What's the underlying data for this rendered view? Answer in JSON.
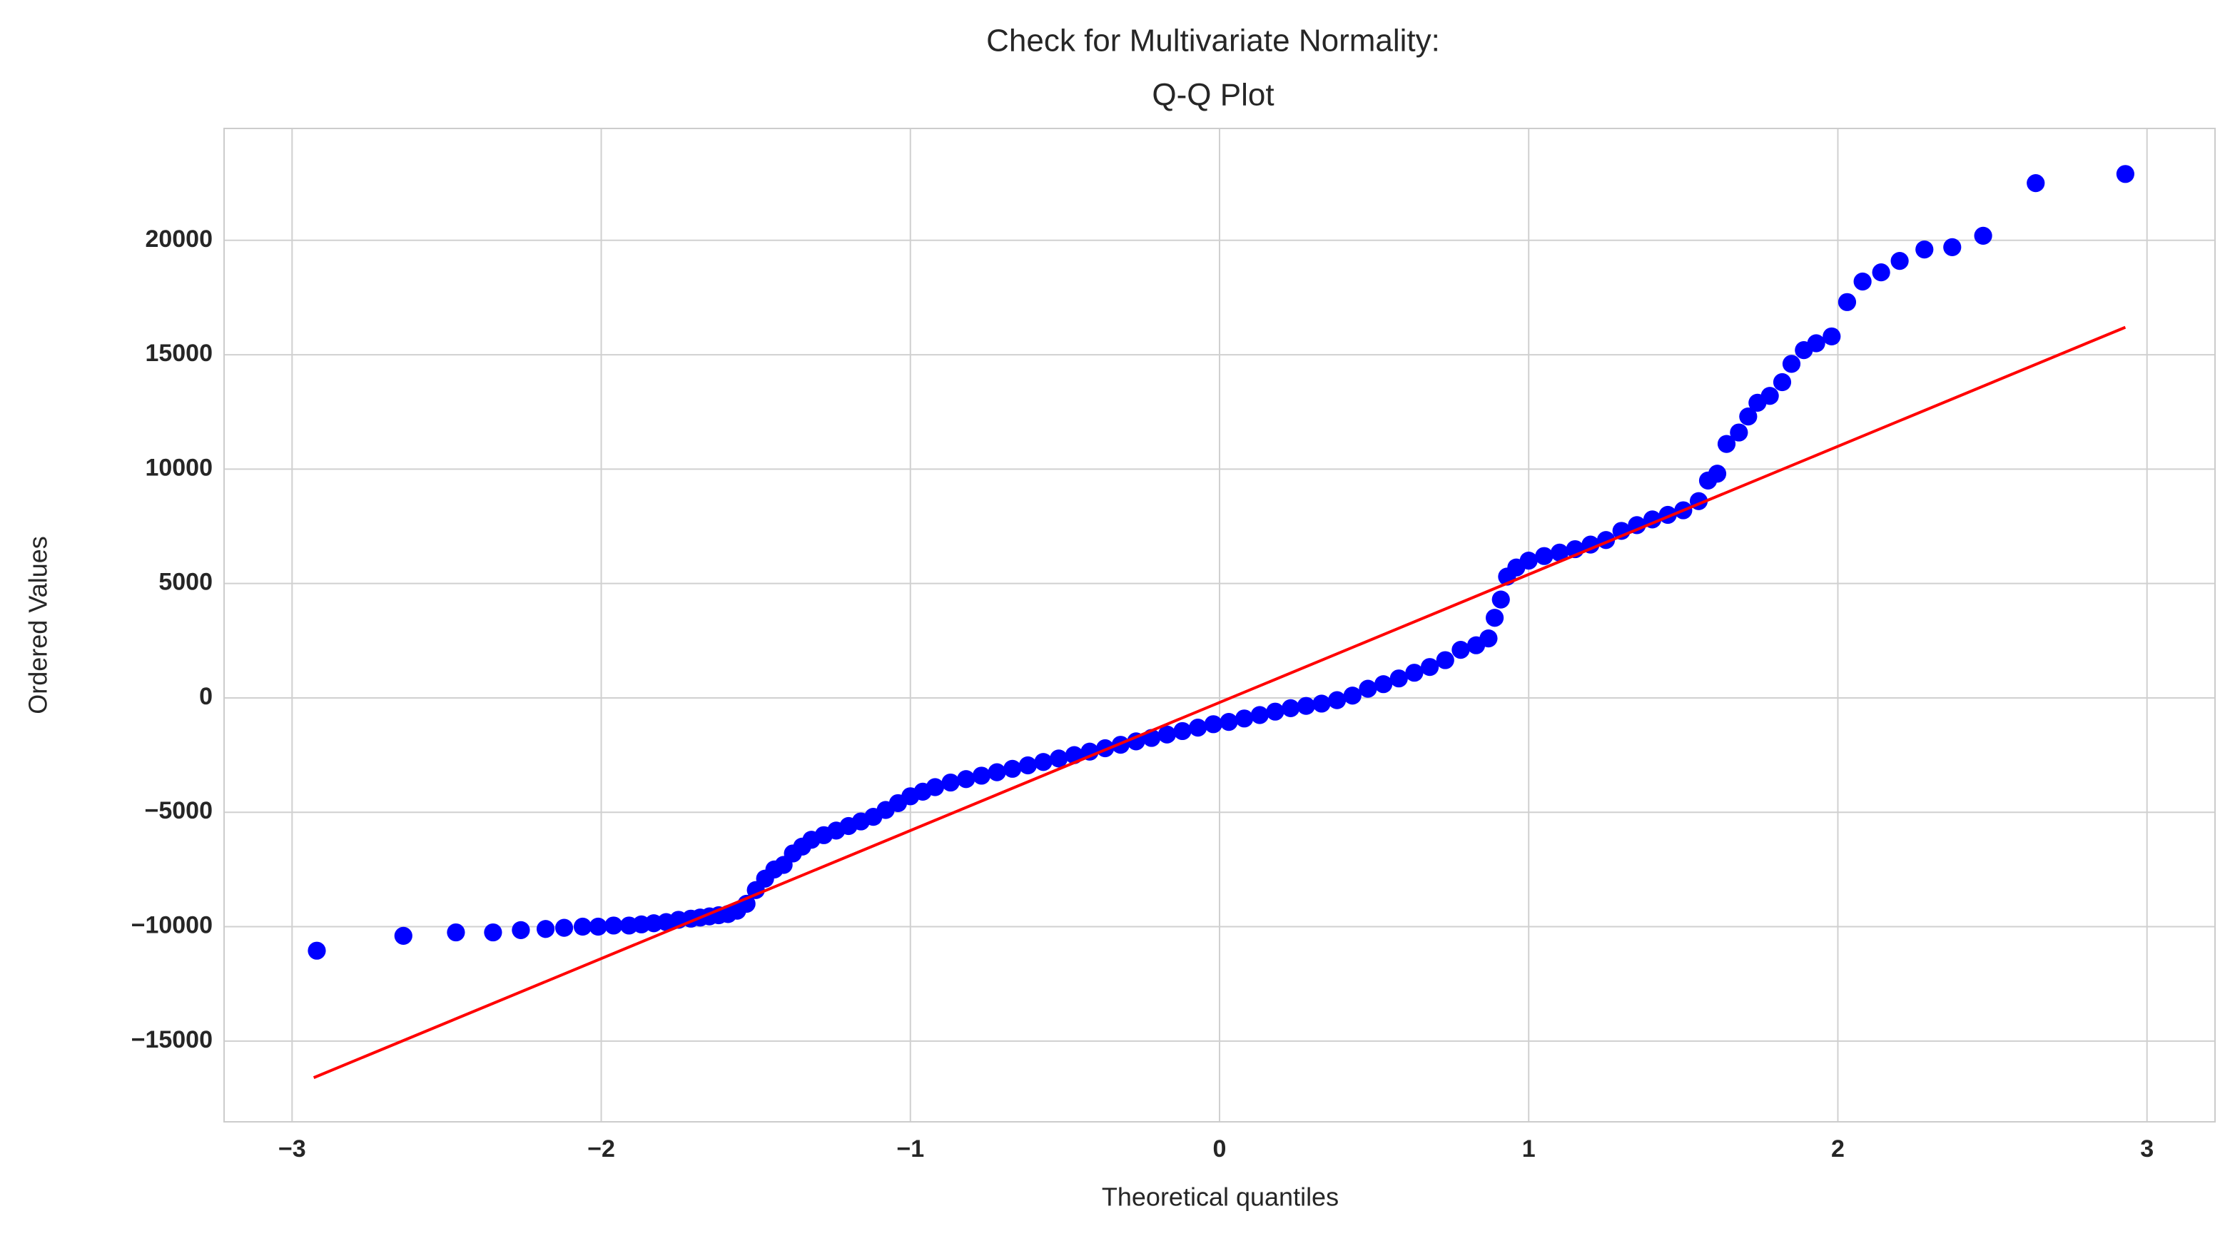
{
  "chart_data": {
    "type": "scatter",
    "title": [
      "Check for Multivariate Normality:",
      "Q-Q Plot"
    ],
    "x_label": "Theoretical quantiles",
    "y_label": "Ordered Values",
    "xlim": [
      -3.22,
      3.22
    ],
    "ylim": [
      -18530,
      24890
    ],
    "xticks": [
      {
        "value": -3,
        "label": "−3"
      },
      {
        "value": -2,
        "label": "−2"
      },
      {
        "value": -1,
        "label": "−1"
      },
      0,
      1,
      2,
      3
    ],
    "yticks": [
      {
        "value": -15000,
        "label": "−15000"
      },
      {
        "value": -10000,
        "label": "−10000"
      },
      {
        "value": -5000,
        "label": "−5000"
      },
      0,
      5000,
      10000,
      15000,
      20000
    ],
    "grid": true,
    "series": [
      {
        "type": "scatter",
        "color": "#0000ff",
        "x": [
          -2.92,
          -2.64,
          -2.47,
          -2.35,
          -2.26,
          -2.18,
          -2.12,
          -2.06,
          -2.01,
          -1.96,
          -1.91,
          -1.87,
          -1.83,
          -1.79,
          -1.75,
          -1.71,
          -1.68,
          -1.65,
          -1.62,
          -1.59,
          -1.56,
          -1.53,
          -1.5,
          -1.47,
          -1.44,
          -1.41,
          -1.38,
          -1.35,
          -1.32,
          -1.28,
          -1.24,
          -1.2,
          -1.16,
          -1.12,
          -1.08,
          -1.04,
          -1.0,
          -0.96,
          -0.92,
          -0.87,
          -0.82,
          -0.77,
          -0.72,
          -0.67,
          -0.62,
          -0.57,
          -0.52,
          -0.47,
          -0.42,
          -0.37,
          -0.32,
          -0.27,
          -0.22,
          -0.17,
          -0.12,
          -0.07,
          -0.02,
          0.03,
          0.08,
          0.13,
          0.18,
          0.23,
          0.28,
          0.33,
          0.38,
          0.43,
          0.48,
          0.53,
          0.58,
          0.63,
          0.68,
          0.73,
          0.78,
          0.83,
          0.87,
          0.89,
          0.91,
          0.93,
          0.96,
          1.0,
          1.05,
          1.1,
          1.15,
          1.2,
          1.25,
          1.3,
          1.35,
          1.4,
          1.45,
          1.5,
          1.55,
          1.58,
          1.61,
          1.64,
          1.68,
          1.71,
          1.74,
          1.78,
          1.82,
          1.85,
          1.89,
          1.93,
          1.98,
          2.03,
          2.08,
          2.14,
          2.2,
          2.28,
          2.37,
          2.47,
          2.64,
          2.93
        ],
        "values": [
          -11050,
          -10400,
          -10250,
          -10250,
          -10150,
          -10100,
          -10050,
          -10000,
          -10000,
          -9950,
          -9950,
          -9900,
          -9850,
          -9800,
          -9700,
          -9650,
          -9600,
          -9550,
          -9500,
          -9450,
          -9300,
          -9000,
          -8400,
          -7900,
          -7500,
          -7300,
          -6800,
          -6500,
          -6200,
          -6000,
          -5800,
          -5600,
          -5400,
          -5200,
          -4900,
          -4600,
          -4300,
          -4100,
          -3900,
          -3700,
          -3550,
          -3400,
          -3250,
          -3100,
          -2950,
          -2800,
          -2650,
          -2500,
          -2350,
          -2200,
          -2050,
          -1900,
          -1750,
          -1600,
          -1450,
          -1300,
          -1150,
          -1050,
          -900,
          -750,
          -600,
          -450,
          -350,
          -250,
          -100,
          100,
          400,
          600,
          850,
          1100,
          1350,
          1650,
          2100,
          2300,
          2600,
          3500,
          4300,
          5300,
          5700,
          6000,
          6200,
          6350,
          6500,
          6700,
          6900,
          7300,
          7550,
          7800,
          8000,
          8200,
          8600,
          9500,
          9800,
          11100,
          11600,
          12300,
          12900,
          13200,
          13800,
          14600,
          15200,
          15500,
          15800,
          17300,
          18200,
          18600,
          19100,
          19600,
          19700,
          20200,
          22500,
          22900
        ]
      },
      {
        "type": "line",
        "color": "#ff0000",
        "x": [
          -2.93,
          2.93
        ],
        "values": [
          -16600,
          16200
        ]
      }
    ]
  }
}
